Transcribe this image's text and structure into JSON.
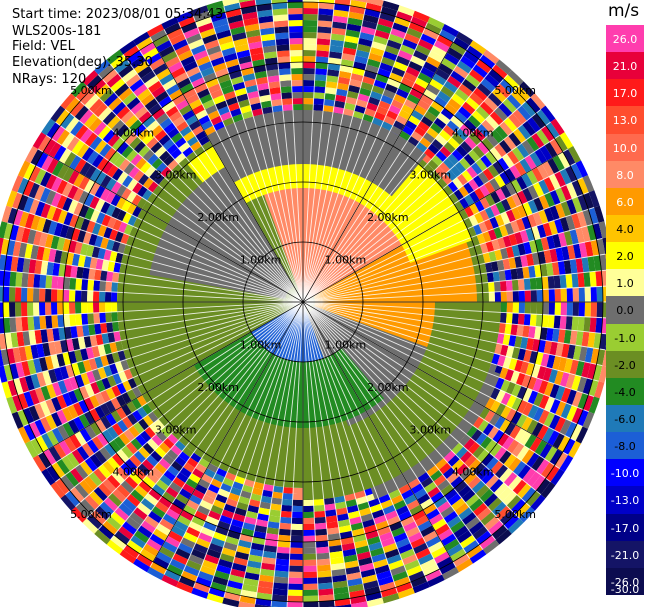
{
  "header": {
    "start_time": "Start time: 2023/08/01 05:34:43",
    "instrument": "WLS200s-181",
    "field": "Field: VEL",
    "elevation": "Elevation(deg): 35.30",
    "nrays": "NRays: 120"
  },
  "colorbar": {
    "unit": "m/s",
    "levels": [
      "26.0",
      "21.0",
      "17.0",
      "13.0",
      "10.0",
      "8.0",
      "6.0",
      "4.0",
      "2.0",
      "1.0",
      "0.0",
      "-1.0",
      "-2.0",
      "-4.0",
      "-6.0",
      "-8.0",
      "-10.0",
      "-13.0",
      "-17.0",
      "-21.0",
      "-26.0",
      "-30.0"
    ],
    "colors": [
      "#ff3dae",
      "#e8003a",
      "#ff1a1a",
      "#ff4d2e",
      "#ff6a4d",
      "#ff8a66",
      "#ff9a00",
      "#ffc400",
      "#ffff00",
      "#ffff99",
      "#6e6e6e",
      "#9acd32",
      "#6b8e23",
      "#228b22",
      "#1f7ab8",
      "#1c5fd6",
      "#0000ff",
      "#0000c8",
      "#000088",
      "#141466",
      "#0c0c50"
    ],
    "white_labels": [
      "26.0",
      "21.0",
      "17.0",
      "13.0",
      "10.0",
      "8.0",
      "6.0",
      "-10.0",
      "-13.0",
      "-17.0",
      "-21.0",
      "-26.0",
      "-30.0"
    ]
  },
  "range_labels": [
    "1.00km",
    "2.00km",
    "3.00km",
    "4.00km",
    "5.00km"
  ],
  "chart_data": {
    "type": "ppi",
    "field": "VEL",
    "units": "m/s",
    "n_rays": 120,
    "elevation_deg": 35.3,
    "range_rings_km": [
      1,
      2,
      3,
      4,
      5
    ],
    "max_range_km": 5.1,
    "velocity_field_sectors": [
      {
        "azimuth_deg": [
          -20,
          60
        ],
        "range_km": [
          0,
          2.0
        ],
        "value_ms": 8.0
      },
      {
        "azimuth_deg": [
          60,
          110
        ],
        "range_km": [
          0.2,
          2.9
        ],
        "value_ms": 6.0
      },
      {
        "azimuth_deg": [
          -40,
          70
        ],
        "range_km": [
          1.9,
          3.0
        ],
        "value_ms": 2.0
      },
      {
        "azimuth_deg": [
          110,
          160
        ],
        "range_km": [
          0.2,
          3.5
        ],
        "value_ms": 0.0
      },
      {
        "azimuth_deg": [
          160,
          240
        ],
        "range_km": [
          0.1,
          1.2
        ],
        "value_ms": -8.0
      },
      {
        "azimuth_deg": [
          140,
          280
        ],
        "range_km": [
          1.0,
          2.1
        ],
        "value_ms": -4.0
      },
      {
        "azimuth_deg": [
          240,
          310
        ],
        "range_km": [
          0.6,
          3.0
        ],
        "value_ms": -2.0
      },
      {
        "azimuth_deg": [
          280,
          330
        ],
        "range_km": [
          0.3,
          2.6
        ],
        "value_ms": 0.0
      },
      {
        "azimuth_deg": [
          330,
          400
        ],
        "range_km": [
          2.3,
          3.2
        ],
        "value_ms": 0.0
      },
      {
        "azimuth_deg": [
          90,
          180
        ],
        "range_km": [
          2.2,
          3.3
        ],
        "value_ms": -2.0
      }
    ],
    "noise_beyond_km": 3.1
  }
}
